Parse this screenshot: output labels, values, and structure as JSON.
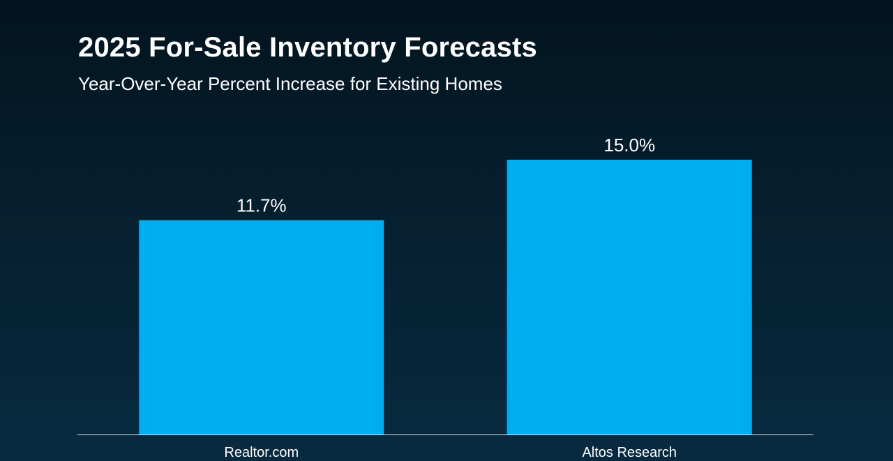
{
  "title": "2025 For-Sale Inventory Forecasts",
  "subtitle": "Year-Over-Year Percent Increase for Existing Homes",
  "colors": {
    "bar": "#00adef",
    "axis_line": "#d9e2ea",
    "text": "#ffffff"
  },
  "chart_data": {
    "type": "bar",
    "title": "2025 For-Sale Inventory Forecasts",
    "subtitle": "Year-Over-Year Percent Increase for Existing Homes",
    "categories": [
      "Realtor.com",
      "Altos Research"
    ],
    "values": [
      11.7,
      15.0
    ],
    "data_labels": [
      "11.7%",
      "15.0%"
    ],
    "xlabel": "",
    "ylabel": "",
    "ylim": [
      0,
      15
    ],
    "grid": false,
    "legend": "none"
  }
}
